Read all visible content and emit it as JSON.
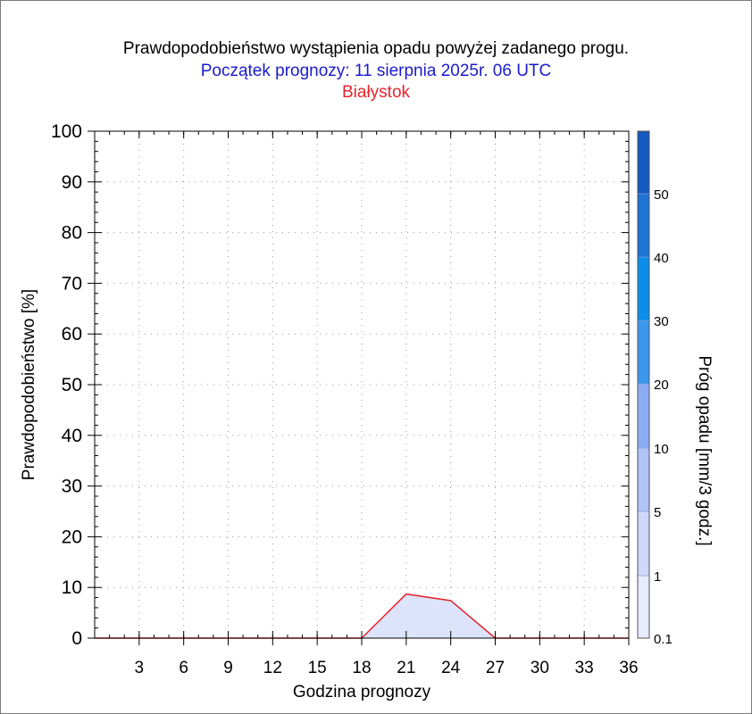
{
  "title": {
    "line1": "Prawdopodobieństwo wystąpienia opadu powyżej zadanego progu.",
    "line2": "Początek prognozy: 11 sierpnia 2025r. 06 UTC",
    "line3": "Białystok"
  },
  "colors": {
    "title_line2": "#1a1ad0",
    "title_line3": "#e8232b",
    "series_line": "#e8232b",
    "series_fill": "#dce3fb"
  },
  "chart_data": {
    "type": "area",
    "xlabel": "Godzina prognozy",
    "ylabel": "Prawdopodobieństwo [%]",
    "x_ticks": [
      3,
      6,
      9,
      12,
      15,
      18,
      21,
      24,
      27,
      30,
      33,
      36
    ],
    "y_ticks": [
      0,
      10,
      20,
      30,
      40,
      50,
      60,
      70,
      80,
      90,
      100
    ],
    "xlim": [
      0,
      36
    ],
    "ylim": [
      0,
      100
    ],
    "grid": true,
    "series": [
      {
        "x": [
          0,
          3,
          6,
          9,
          12,
          15,
          18,
          21,
          24,
          27,
          30,
          33,
          36
        ],
        "y": [
          0,
          0,
          0,
          0,
          0,
          0,
          0,
          8.7,
          7.4,
          0,
          0,
          0,
          0
        ]
      }
    ],
    "colorbar": {
      "label": "Próg opadu [mm/3 godz.]",
      "tick_labels": [
        "0.1",
        "1",
        "5",
        "10",
        "20",
        "30",
        "40",
        "50"
      ],
      "colors": [
        "#e6ebfd",
        "#cdd8fb",
        "#b0c3f7",
        "#8cadf2",
        "#3d97ee",
        "#0a8eea",
        "#1e73d6",
        "#1458c2",
        "#0c3ea8"
      ]
    }
  }
}
